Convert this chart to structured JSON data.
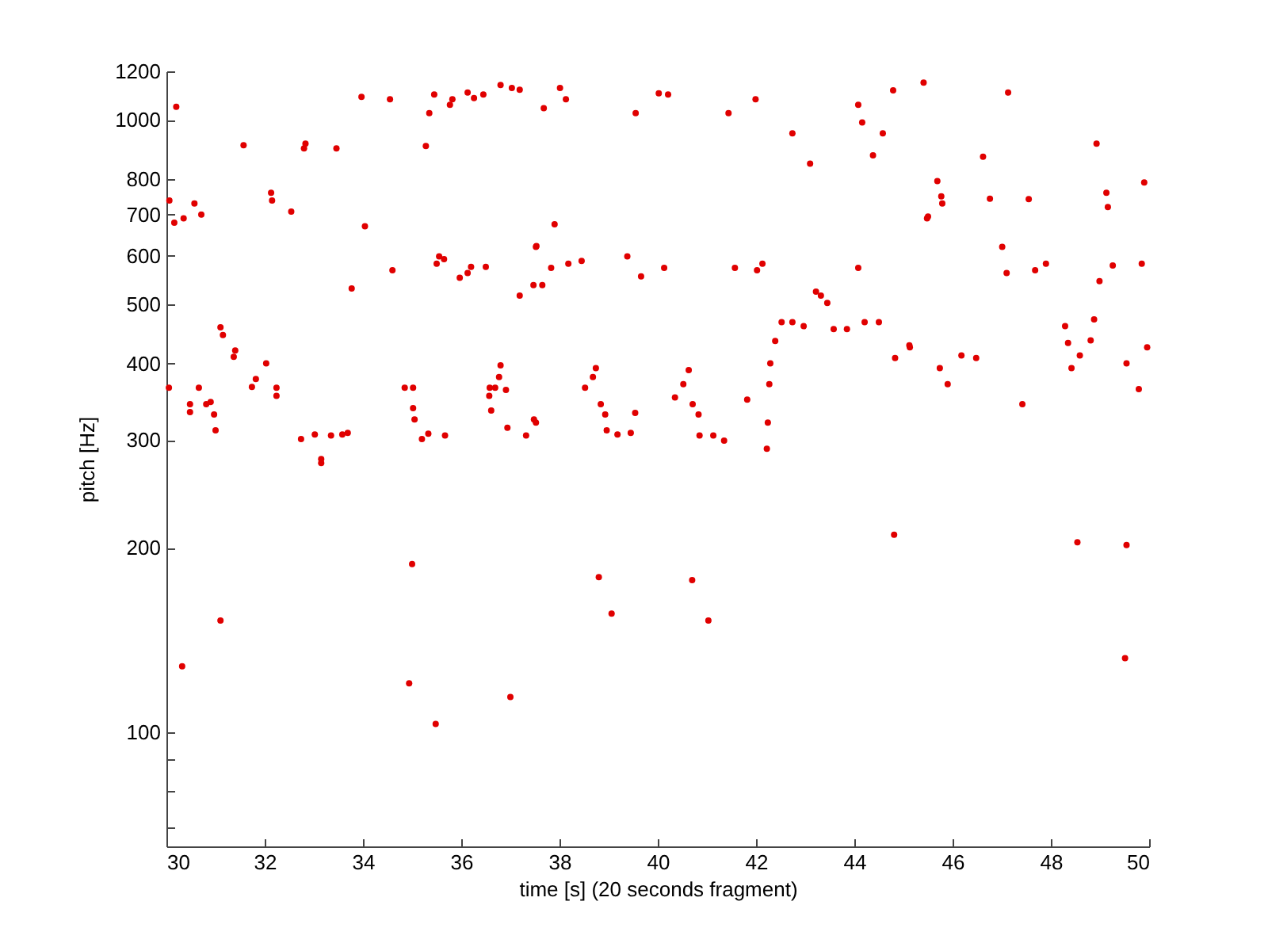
{
  "chart_data": {
    "type": "scatter",
    "xlabel": "time [s] (20 seconds fragment)",
    "ylabel": "pitch [Hz]",
    "log": "y",
    "grid": false,
    "marker": "circle",
    "xlim": [
      30,
      50
    ],
    "ylim": [
      65,
      1200
    ],
    "xticks": [
      30,
      32,
      34,
      36,
      38,
      40,
      42,
      44,
      46,
      48,
      50
    ],
    "yticks": [
      {
        "value": 70,
        "label": null
      },
      {
        "value": 80,
        "label": null
      },
      {
        "value": 90,
        "label": null
      },
      100,
      200,
      300,
      400,
      500,
      600,
      700,
      800,
      1000,
      1200
    ],
    "series": [
      {
        "color": "#e00000",
        "x": [
          30.06,
          30.2,
          30.16,
          30.35,
          30.57,
          30.71,
          30.05,
          30.48,
          30.48,
          30.66,
          30.81,
          30.9,
          30.97,
          31.0,
          31.1,
          31.15,
          31.1,
          30.32,
          31.4,
          31.37,
          31.57,
          31.74,
          31.82,
          32.03,
          32.24,
          32.24,
          32.13,
          32.15,
          32.54,
          32.74,
          32.83,
          32.8,
          33.02,
          33.15,
          33.15,
          33.35,
          33.46,
          33.58,
          33.69,
          33.77,
          33.97,
          34.04,
          34.55,
          34.6,
          34.85,
          35.02,
          35.02,
          35.05,
          35.0,
          34.94,
          35.2,
          35.33,
          35.48,
          35.67,
          35.28,
          35.35,
          35.45,
          35.5,
          35.55,
          35.65,
          35.77,
          35.82,
          35.97,
          36.13,
          36.2,
          36.13,
          36.26,
          36.45,
          36.5,
          36.58,
          36.61,
          36.8,
          36.77,
          36.69,
          36.91,
          36.94,
          36.8,
          37.03,
          37.19,
          37.0,
          37.19,
          37.47,
          37.32,
          37.52,
          37.52,
          36.57,
          37.48,
          37.53,
          37.65,
          37.68,
          37.83,
          37.9,
          38.01,
          38.13,
          38.18,
          38.45,
          38.52,
          38.68,
          38.74,
          38.84,
          38.93,
          38.96,
          39.18,
          39.45,
          39.54,
          38.8,
          39.06,
          39.38,
          39.55,
          39.66,
          40.02,
          40.13,
          40.21,
          40.35,
          40.52,
          40.63,
          40.71,
          40.83,
          40.85,
          41.13,
          41.35,
          40.7,
          41.03,
          41.44,
          41.57,
          41.82,
          41.99,
          42.02,
          42.13,
          42.22,
          42.24,
          42.27,
          42.29,
          42.39,
          42.52,
          42.74,
          42.97,
          42.74,
          43.1,
          43.22,
          43.32,
          43.45,
          43.58,
          43.85,
          44.08,
          44.08,
          44.16,
          44.21,
          44.5,
          44.38,
          44.58,
          44.81,
          44.79,
          44.83,
          45.13,
          45.41,
          45.5,
          45.69,
          45.77,
          45.74,
          45.9,
          45.79,
          45.48,
          46.62,
          46.76,
          47.13,
          47.55,
          47.01,
          47.1,
          47.68,
          47.9,
          48.93,
          49.13,
          49.16,
          49.9,
          49.26,
          48.99,
          49.85,
          45.12,
          46.18,
          46.48,
          47.42,
          48.29,
          48.35,
          48.42,
          48.59,
          48.81,
          48.88,
          49.54,
          49.79,
          49.96,
          48.54,
          49.54,
          49.51
        ],
        "values": [
          738,
          1050,
          679,
          690,
          730,
          700,
          365,
          343,
          333,
          365,
          343,
          346,
          330,
          311,
          458,
          445,
          152,
          128,
          420,
          410,
          909,
          366,
          377,
          400,
          365,
          354,
          760,
          738,
          708,
          301,
          914,
          898,
          306,
          279,
          275,
          305,
          898,
          306,
          308,
          530,
          1090,
          670,
          1080,
          568,
          365,
          365,
          338,
          324,
          188,
          120,
          301,
          307,
          103,
          305,
          906,
          1025,
          1100,
          582,
          598,
          592,
          1058,
          1080,
          552,
          562,
          575,
          1108,
          1085,
          1100,
          575,
          365,
          335,
          397,
          380,
          365,
          362,
          314,
          1140,
          1127,
          1120,
          114,
          516,
          537,
          305,
          320,
          620,
          354,
          324,
          622,
          537,
          1045,
          573,
          675,
          1127,
          1080,
          582,
          588,
          365,
          380,
          393,
          343,
          330,
          311,
          306,
          308,
          332,
          179,
          156,
          598,
          1025,
          555,
          1105,
          573,
          1100,
          352,
          370,
          390,
          343,
          330,
          305,
          305,
          299,
          177,
          152,
          1025,
          573,
          349,
          1080,
          568,
          582,
          290,
          320,
          370,
          400,
          435,
          467,
          467,
          460,
          950,
          848,
          524,
          516,
          502,
          455,
          455,
          573,
          1058,
          990,
          467,
          467,
          875,
          950,
          210,
          1117,
          408,
          425,
          1150,
          695,
          794,
          750,
          393,
          370,
          730,
          690,
          870,
          743,
          1108,
          742,
          620,
          562,
          568,
          582,
          914,
          760,
          720,
          790,
          578,
          545,
          582,
          428,
          412,
          408,
          343,
          460,
          432,
          393,
          412,
          436,
          472,
          400,
          363,
          425,
          204,
          202,
          132
        ]
      }
    ]
  }
}
